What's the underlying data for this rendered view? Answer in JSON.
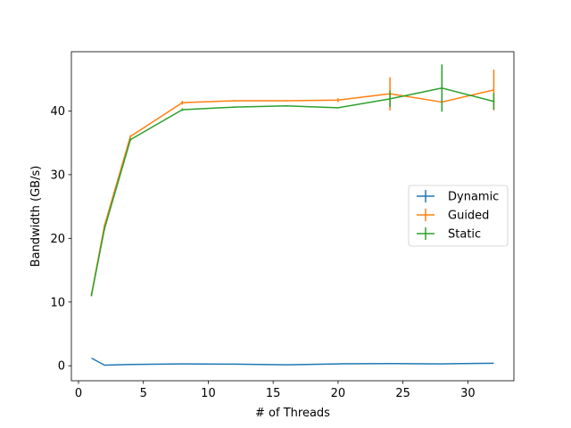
{
  "chart_data": {
    "type": "line",
    "xlabel": "# of Threads",
    "ylabel": "Bandwidth (GB/s)",
    "xlim": [
      -0.55,
      33.55
    ],
    "ylim": [
      -2.35,
      49.3
    ],
    "xticks": [
      0,
      5,
      10,
      15,
      20,
      25,
      30
    ],
    "yticks": [
      0,
      10,
      20,
      30,
      40
    ],
    "grid": false,
    "legend_position": "center-right",
    "series": [
      {
        "name": "Dynamic",
        "color": "#1f77b4",
        "x": [
          1,
          2,
          4,
          8,
          12,
          16,
          20,
          24,
          28,
          32
        ],
        "y": [
          1.2,
          0.1,
          0.2,
          0.3,
          0.25,
          0.15,
          0.3,
          0.35,
          0.3,
          0.4
        ],
        "yerr": [
          0,
          0,
          0,
          0,
          0,
          0,
          0,
          0,
          0,
          0
        ]
      },
      {
        "name": "Guided",
        "color": "#ff7f0e",
        "x": [
          1,
          2,
          4,
          8,
          12,
          16,
          20,
          24,
          28,
          32
        ],
        "y": [
          11.2,
          22.0,
          36.0,
          41.3,
          41.6,
          41.6,
          41.7,
          42.7,
          41.4,
          43.3
        ],
        "yerr": [
          0.2,
          0.2,
          0.2,
          0.3,
          0.1,
          0.1,
          0.3,
          2.6,
          0.2,
          3.2
        ]
      },
      {
        "name": "Static",
        "color": "#2ca02c",
        "x": [
          1,
          2,
          4,
          8,
          12,
          16,
          20,
          24,
          28,
          32
        ],
        "y": [
          11.1,
          21.5,
          35.5,
          40.2,
          40.6,
          40.8,
          40.5,
          41.9,
          43.6,
          41.5
        ],
        "yerr": [
          0.2,
          0.2,
          0.2,
          0.2,
          0.1,
          0.1,
          0.1,
          1.3,
          3.7,
          1.3
        ]
      }
    ]
  }
}
